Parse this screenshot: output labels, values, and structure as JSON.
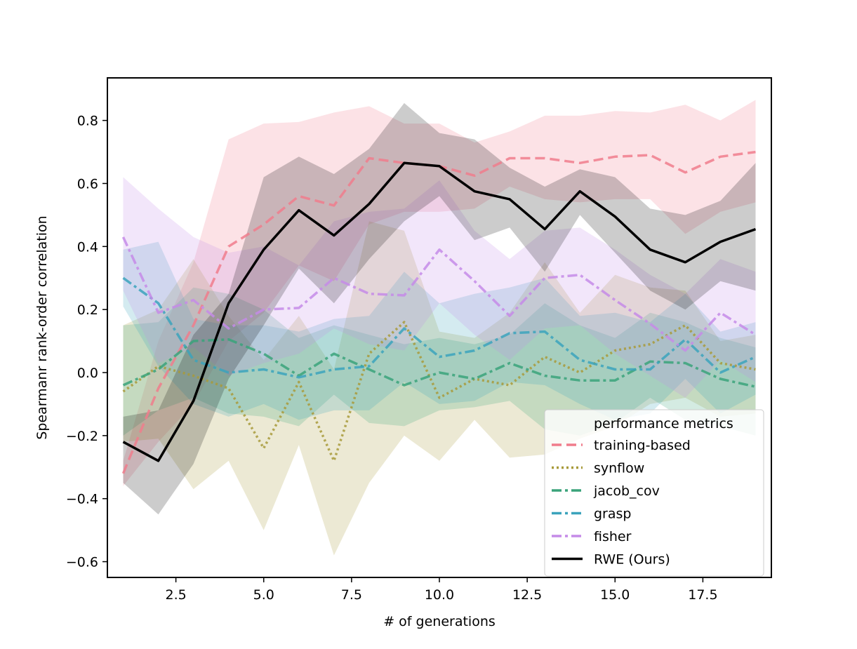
{
  "chart_data": {
    "type": "line",
    "title": "",
    "xlabel": "# of generations",
    "ylabel": "Spearmanr rank-order correlation",
    "xlim": [
      0.55,
      19.45
    ],
    "ylim": [
      -0.65,
      0.935
    ],
    "xticks": [
      2.5,
      5.0,
      7.5,
      10.0,
      12.5,
      15.0,
      17.5
    ],
    "xtick_labels": [
      "2.5",
      "5.0",
      "7.5",
      "10.0",
      "12.5",
      "15.0",
      "17.5"
    ],
    "yticks": [
      -0.6,
      -0.4,
      -0.2,
      0.0,
      0.2,
      0.4,
      0.6,
      0.8
    ],
    "ytick_labels": [
      "−0.6",
      "−0.4",
      "−0.2",
      "0.0",
      "0.2",
      "0.4",
      "0.6",
      "0.8"
    ],
    "grid": false,
    "legend": {
      "placement": "lower-right",
      "title": "performance metrics"
    },
    "x": [
      1,
      2,
      3,
      4,
      5,
      6,
      7,
      8,
      9,
      10,
      11,
      12,
      13,
      14,
      15,
      16,
      17,
      18,
      19
    ],
    "series": [
      {
        "name": "training-based",
        "color": "#f07c8c",
        "dash": "dashed",
        "values": [
          -0.32,
          -0.05,
          0.15,
          0.4,
          0.47,
          0.56,
          0.53,
          0.68,
          0.665,
          0.655,
          0.625,
          0.68,
          0.68,
          0.665,
          0.685,
          0.69,
          0.635,
          0.685,
          0.7
        ],
        "lower": [
          -0.36,
          -0.22,
          -0.1,
          0.1,
          0.19,
          0.34,
          0.29,
          0.47,
          0.51,
          0.51,
          0.52,
          0.59,
          0.55,
          0.54,
          0.55,
          0.55,
          0.44,
          0.51,
          0.54
        ],
        "upper": [
          -0.28,
          0.1,
          0.35,
          0.74,
          0.79,
          0.795,
          0.825,
          0.845,
          0.79,
          0.79,
          0.73,
          0.765,
          0.815,
          0.815,
          0.83,
          0.825,
          0.85,
          0.8,
          0.865
        ]
      },
      {
        "name": "synflow",
        "color": "#a89a3a",
        "dash": "dotted",
        "values": [
          -0.06,
          0.02,
          -0.01,
          -0.05,
          -0.24,
          -0.03,
          -0.28,
          0.06,
          0.16,
          -0.08,
          -0.02,
          -0.04,
          0.05,
          0.0,
          0.07,
          0.09,
          0.15,
          0.03,
          0.01
        ],
        "lower": [
          -0.22,
          -0.21,
          -0.37,
          -0.28,
          -0.5,
          -0.23,
          -0.58,
          -0.35,
          -0.2,
          -0.28,
          -0.15,
          -0.27,
          -0.26,
          -0.21,
          -0.17,
          -0.1,
          -0.08,
          -0.14,
          -0.13
        ],
        "upper": [
          0.15,
          0.2,
          0.36,
          0.18,
          0.04,
          0.18,
          0.01,
          0.48,
          0.45,
          0.13,
          0.11,
          0.19,
          0.35,
          0.19,
          0.31,
          0.27,
          0.26,
          0.1,
          0.12
        ]
      },
      {
        "name": "jacob_cov",
        "color": "#3aa37a",
        "dash": "dashdot",
        "values": [
          -0.04,
          0.01,
          0.1,
          0.105,
          0.06,
          -0.01,
          0.06,
          0.01,
          -0.04,
          0.0,
          -0.02,
          0.03,
          -0.01,
          -0.025,
          -0.025,
          0.035,
          0.03,
          -0.02,
          -0.045
        ],
        "lower": [
          -0.2,
          -0.12,
          -0.08,
          -0.13,
          -0.14,
          -0.17,
          -0.07,
          -0.16,
          -0.17,
          -0.12,
          -0.11,
          -0.09,
          -0.18,
          -0.2,
          -0.16,
          -0.08,
          -0.15,
          -0.17,
          -0.2
        ],
        "upper": [
          0.15,
          0.16,
          0.27,
          0.25,
          0.2,
          0.11,
          0.15,
          0.12,
          0.09,
          0.11,
          0.09,
          0.12,
          0.22,
          0.15,
          0.11,
          0.19,
          0.16,
          0.11,
          0.08
        ]
      },
      {
        "name": "grasp",
        "color": "#3ba3bc",
        "dash": "dashdot",
        "values": [
          0.3,
          0.22,
          0.04,
          0.0,
          0.01,
          -0.015,
          0.01,
          0.02,
          0.14,
          0.05,
          0.07,
          0.125,
          0.13,
          0.04,
          0.01,
          0.01,
          0.105,
          0.0,
          0.05
        ],
        "lower": [
          0.21,
          0.02,
          -0.1,
          -0.14,
          -0.1,
          -0.15,
          -0.12,
          -0.12,
          -0.03,
          -0.1,
          -0.09,
          -0.03,
          -0.04,
          -0.1,
          -0.15,
          -0.13,
          -0.02,
          -0.13,
          -0.07
        ],
        "upper": [
          0.39,
          0.415,
          0.17,
          0.15,
          0.15,
          0.13,
          0.17,
          0.18,
          0.32,
          0.22,
          0.25,
          0.27,
          0.3,
          0.18,
          0.19,
          0.16,
          0.25,
          0.13,
          0.16
        ]
      },
      {
        "name": "fisher",
        "color": "#c58be8",
        "dash": "dashdot",
        "values": [
          0.43,
          0.19,
          0.23,
          0.14,
          0.2,
          0.205,
          0.3,
          0.25,
          0.245,
          0.39,
          0.29,
          0.18,
          0.3,
          0.31,
          0.23,
          0.155,
          0.07,
          0.19,
          0.12
        ],
        "lower": [
          0.26,
          0.03,
          0.08,
          -0.01,
          0.03,
          0.06,
          0.14,
          0.09,
          0.07,
          0.22,
          0.12,
          0.04,
          0.14,
          0.15,
          0.06,
          -0.01,
          -0.08,
          0.04,
          -0.03
        ],
        "upper": [
          0.62,
          0.52,
          0.43,
          0.38,
          0.4,
          0.34,
          0.48,
          0.51,
          0.52,
          0.61,
          0.45,
          0.36,
          0.45,
          0.46,
          0.39,
          0.31,
          0.25,
          0.36,
          0.32
        ]
      },
      {
        "name": "RWE (Ours)",
        "color": "#000000",
        "dash": "solid",
        "values": [
          -0.22,
          -0.28,
          -0.09,
          0.22,
          0.39,
          0.515,
          0.435,
          0.535,
          0.665,
          0.655,
          0.575,
          0.55,
          0.455,
          0.575,
          0.495,
          0.39,
          0.35,
          0.415,
          0.455
        ],
        "lower": [
          -0.35,
          -0.45,
          -0.29,
          -0.02,
          0.15,
          0.33,
          0.22,
          0.36,
          0.48,
          0.56,
          0.42,
          0.46,
          0.32,
          0.5,
          0.38,
          0.26,
          0.2,
          0.29,
          0.26
        ],
        "upper": [
          -0.14,
          -0.12,
          0.12,
          0.25,
          0.62,
          0.685,
          0.63,
          0.71,
          0.855,
          0.76,
          0.74,
          0.65,
          0.59,
          0.645,
          0.62,
          0.52,
          0.5,
          0.545,
          0.665
        ]
      }
    ]
  }
}
